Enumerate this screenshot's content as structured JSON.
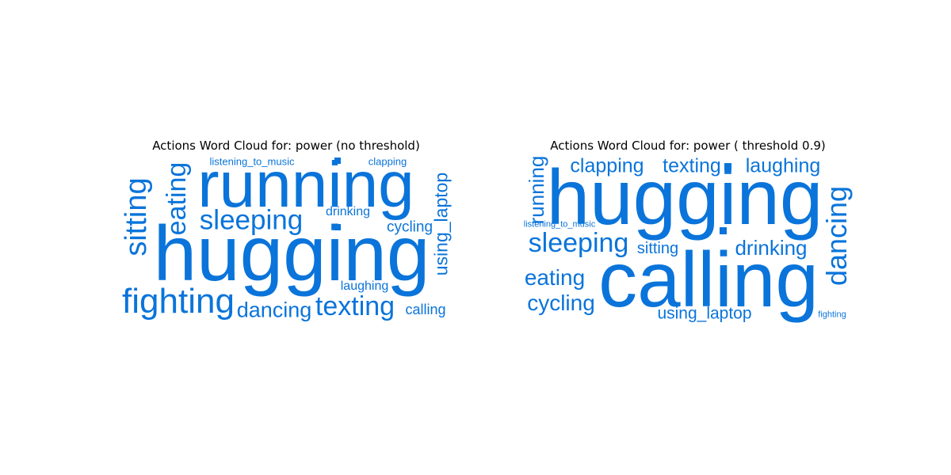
{
  "accent_color": "#0a74da",
  "chart_data": [
    {
      "type": "word_cloud",
      "title": "Actions Word Cloud for: power (no threshold)",
      "words": [
        {
          "text": "hugging",
          "weight": 100
        },
        {
          "text": "running",
          "weight": 85
        },
        {
          "text": "fighting",
          "weight": 44
        },
        {
          "text": "sitting",
          "weight": 38
        },
        {
          "text": "eating",
          "weight": 34
        },
        {
          "text": "sleeping",
          "weight": 35
        },
        {
          "text": "texting",
          "weight": 34
        },
        {
          "text": "dancing",
          "weight": 27
        },
        {
          "text": "using_laptop",
          "weight": 23
        },
        {
          "text": "cycling",
          "weight": 19
        },
        {
          "text": "calling",
          "weight": 18
        },
        {
          "text": "drinking",
          "weight": 16
        },
        {
          "text": "laughing",
          "weight": 16
        },
        {
          "text": "listening_to_music",
          "weight": 13
        },
        {
          "text": "clapping",
          "weight": 13
        }
      ]
    },
    {
      "type": "word_cloud",
      "title": "Actions Word Cloud for: power ( threshold 0.9)",
      "words": [
        {
          "text": "calling",
          "weight": 100
        },
        {
          "text": "hugging",
          "weight": 100
        },
        {
          "text": "dancing",
          "weight": 36
        },
        {
          "text": "sleeping",
          "weight": 34
        },
        {
          "text": "running",
          "weight": 26
        },
        {
          "text": "cycling",
          "weight": 28
        },
        {
          "text": "eating",
          "weight": 28
        },
        {
          "text": "clapping",
          "weight": 25
        },
        {
          "text": "texting",
          "weight": 25
        },
        {
          "text": "laughing",
          "weight": 25
        },
        {
          "text": "drinking",
          "weight": 26
        },
        {
          "text": "using_laptop",
          "weight": 21
        },
        {
          "text": "sitting",
          "weight": 20
        },
        {
          "text": "listening_to_music",
          "weight": 11
        },
        {
          "text": "fighting",
          "weight": 11
        }
      ]
    }
  ]
}
